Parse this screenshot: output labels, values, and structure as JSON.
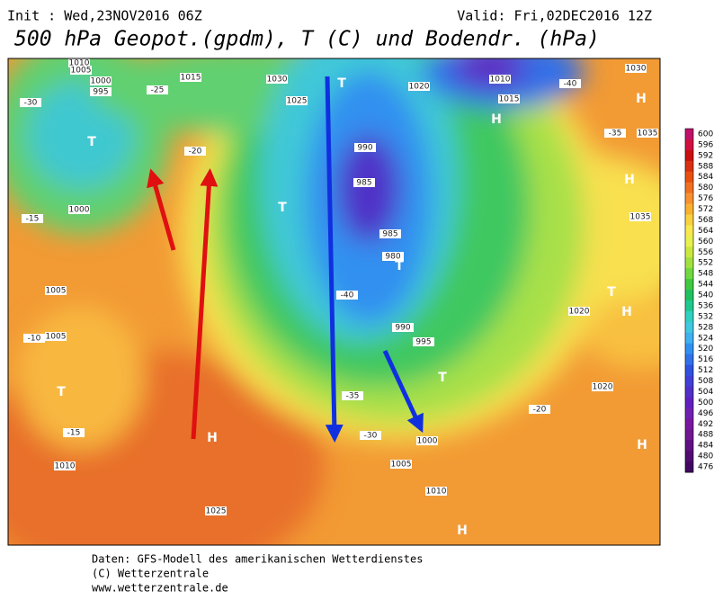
{
  "header": {
    "init": "Init : Wed,23NOV2016 06Z",
    "valid": "Valid: Fri,02DEC2016 12Z",
    "title": "500 hPa Geopot.(gpdm), T (C) und Bodendr. (hPa)"
  },
  "legend": {
    "levels": [
      600,
      596,
      592,
      588,
      584,
      580,
      576,
      572,
      568,
      564,
      560,
      556,
      552,
      548,
      544,
      540,
      536,
      532,
      528,
      524,
      520,
      516,
      512,
      508,
      504,
      500,
      496,
      492,
      488,
      484,
      480,
      476
    ],
    "colors": [
      "#c0106a",
      "#d01040",
      "#c81010",
      "#d83010",
      "#e85010",
      "#f07020",
      "#f89030",
      "#f8b030",
      "#f8d040",
      "#f8e850",
      "#e8f050",
      "#c8e840",
      "#a0e040",
      "#70d840",
      "#40c840",
      "#20c060",
      "#20c890",
      "#30d0c0",
      "#40c8e0",
      "#40b0f0",
      "#3090f0",
      "#3070e8",
      "#3050e0",
      "#4040d8",
      "#5030c8",
      "#6020c0",
      "#7020b0",
      "#7818a0",
      "#701890",
      "#601080",
      "#500c70",
      "#400860"
    ]
  },
  "map_labels": [
    "1010",
    "1005",
    "1000",
    "995",
    "1015",
    "1030",
    "1025",
    "1020",
    "1010",
    "1015",
    "1030",
    "1035",
    "990",
    "985",
    "985",
    "980",
    "990",
    "995",
    "1000",
    "1005",
    "1010",
    "1025",
    "1010",
    "1005",
    "1005",
    "1000",
    "1020",
    "1020",
    "1035",
    "-35",
    "-40",
    "-30",
    "-25",
    "-20",
    "-15",
    "-10",
    "-15",
    "-35",
    "-40",
    "-30",
    "-20"
  ],
  "pressure_centers": [
    "H",
    "H",
    "H",
    "H",
    "H",
    "H",
    "H",
    "T",
    "T",
    "T",
    "T",
    "T",
    "T",
    "T"
  ],
  "footer": [
    "Daten: GFS-Modell des amerikanischen Wetterdienstes",
    "(C) Wetterzentrale",
    "www.wetterzentrale.de"
  ]
}
